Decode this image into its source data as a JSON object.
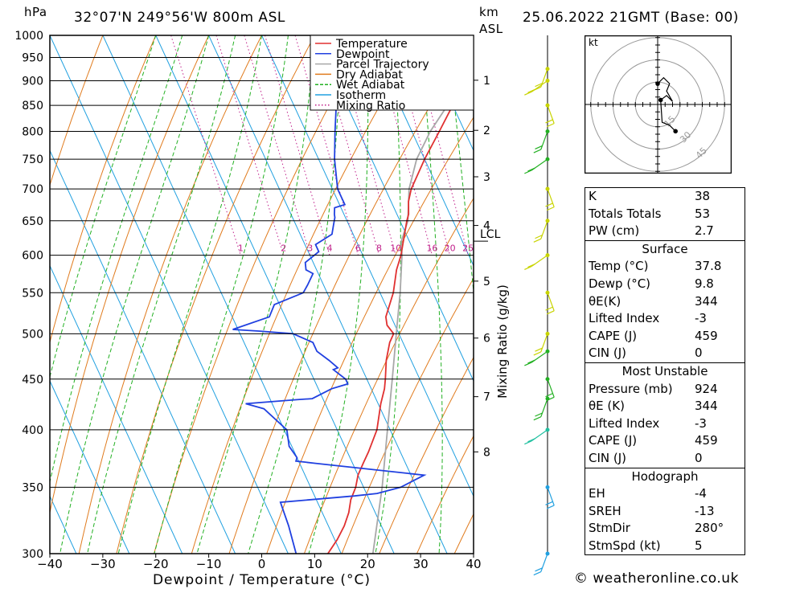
{
  "header": {
    "hpa_label": "hPa",
    "location": "32°07'N  249°56'W  800m  ASL",
    "km_label": "km",
    "asl_label": "ASL",
    "datetime": "25.06.2022  21GMT  (Base: 00)"
  },
  "footer": {
    "credit": "© weatheronline.co.uk"
  },
  "chart_data": {
    "type": "line",
    "xlabel": "Dewpoint / Temperature (°C)",
    "x_ticks": [
      -40,
      -30,
      -20,
      -10,
      0,
      10,
      20,
      30,
      40
    ],
    "xlim": [
      -40,
      40
    ],
    "y_axis": "pressure (hPa), log scale",
    "ylim": [
      1000,
      300
    ],
    "pressure_ticks": [
      300,
      350,
      400,
      450,
      500,
      550,
      600,
      650,
      700,
      750,
      800,
      850,
      900,
      950,
      1000
    ],
    "km_ticks": [
      {
        "label": "8",
        "p": 380
      },
      {
        "label": "7",
        "p": 432
      },
      {
        "label": "6",
        "p": 495
      },
      {
        "label": "5",
        "p": 565
      },
      {
        "label": "4",
        "p": 643
      },
      {
        "label": "3",
        "p": 720
      },
      {
        "label": "2",
        "p": 802
      },
      {
        "label": "1",
        "p": 901
      }
    ],
    "lcl": {
      "label": "LCL",
      "p": 620
    },
    "mixing_ratio_label": "Mixing Ratio (g/kg)",
    "mixing_ratio_values": [
      1,
      2,
      3,
      4,
      6,
      8,
      10,
      16,
      20,
      25
    ],
    "skew": 14.4,
    "legend": [
      "Temperature",
      "Dewpoint",
      "Parcel Trajectory",
      "Dry Adiabat",
      "Wet Adiabat",
      "Isotherm",
      "Mixing Ratio"
    ],
    "colors": {
      "temperature": "#e03030",
      "dewpoint": "#2040e0",
      "parcel": "#a8a8a8",
      "dry_adiabat": "#e07b1e",
      "wet_adiabat": "#22b022",
      "isotherm": "#20a0e0",
      "mixing_ratio": "#c0208a"
    },
    "series": [
      {
        "name": "Temperature",
        "values": [
          [
            924,
            37.8
          ],
          [
            910,
            36.3
          ],
          [
            900,
            35.0
          ],
          [
            850,
            30.0
          ],
          [
            800,
            25.2
          ],
          [
            750,
            20.0
          ],
          [
            700,
            14.9
          ],
          [
            680,
            13.3
          ],
          [
            660,
            12.2
          ],
          [
            650,
            11.3
          ],
          [
            640,
            10.5
          ],
          [
            600,
            7.2
          ],
          [
            580,
            5.1
          ],
          [
            550,
            2.5
          ],
          [
            520,
            -1.0
          ],
          [
            510,
            -1.5
          ],
          [
            500,
            -1.0
          ],
          [
            490,
            -2.5
          ],
          [
            470,
            -4.7
          ],
          [
            450,
            -6.5
          ],
          [
            440,
            -7.5
          ],
          [
            425,
            -9.5
          ],
          [
            400,
            -12.5
          ],
          [
            380,
            -16.0
          ],
          [
            370,
            -18.0
          ],
          [
            360,
            -20.0
          ],
          [
            350,
            -21.5
          ],
          [
            340,
            -23.5
          ],
          [
            330,
            -25.0
          ],
          [
            320,
            -27.0
          ],
          [
            310,
            -29.5
          ],
          [
            300,
            -32.5
          ]
        ]
      },
      {
        "name": "Dewpoint",
        "values": [
          [
            924,
            9.8
          ],
          [
            900,
            9.5
          ],
          [
            850,
            8.0
          ],
          [
            800,
            5.5
          ],
          [
            750,
            3.0
          ],
          [
            700,
            1.0
          ],
          [
            675,
            1.0
          ],
          [
            670,
            -1.2
          ],
          [
            660,
            -1.8
          ],
          [
            655,
            -2.0
          ],
          [
            645,
            -2.8
          ],
          [
            630,
            -4.0
          ],
          [
            615,
            -8.0
          ],
          [
            605,
            -8.0
          ],
          [
            590,
            -11.5
          ],
          [
            580,
            -12.0
          ],
          [
            575,
            -11.0
          ],
          [
            560,
            -13.0
          ],
          [
            550,
            -14.5
          ],
          [
            535,
            -21.0
          ],
          [
            520,
            -23.0
          ],
          [
            505,
            -31.0
          ],
          [
            503,
            -26.0
          ],
          [
            500,
            -20.0
          ],
          [
            490,
            -17.0
          ],
          [
            480,
            -17.0
          ],
          [
            470,
            -15.5
          ],
          [
            462,
            -14.5
          ],
          [
            460,
            -15.5
          ],
          [
            450,
            -14.0
          ],
          [
            445,
            -14.0
          ],
          [
            440,
            -17.5
          ],
          [
            430,
            -22.0
          ],
          [
            429,
            -25.0
          ],
          [
            425,
            -35.0
          ],
          [
            420,
            -32.0
          ],
          [
            400,
            -29.5
          ],
          [
            385,
            -30.5
          ],
          [
            375,
            -30.0
          ],
          [
            372,
            -30.5
          ],
          [
            370,
            -27.0
          ],
          [
            360,
            -7.5
          ],
          [
            350,
            -13.0
          ],
          [
            345,
            -18.0
          ],
          [
            343,
            -22.5
          ],
          [
            338,
            -37.0
          ],
          [
            320,
            -37.5
          ],
          [
            300,
            -38.5
          ]
        ]
      },
      {
        "name": "Parcel Trajectory",
        "values": [
          [
            924,
            37.8
          ],
          [
            900,
            34.6
          ],
          [
            850,
            29.0
          ],
          [
            800,
            23.5
          ],
          [
            750,
            18.5
          ],
          [
            700,
            14.5
          ],
          [
            650,
            11.5
          ],
          [
            620,
            8.5
          ],
          [
            600,
            7.4
          ],
          [
            550,
            3.8
          ],
          [
            500,
            -0.5
          ],
          [
            450,
            -5.2
          ],
          [
            400,
            -10.5
          ],
          [
            350,
            -16.5
          ],
          [
            300,
            -24.0
          ]
        ]
      }
    ],
    "wind_barbs": [
      {
        "p": 300,
        "color": "#20a0e0"
      },
      {
        "p": 350,
        "color": "#20a0e0"
      },
      {
        "p": 400,
        "color": "#20c0a0"
      },
      {
        "p": 430,
        "color": "#22b022"
      },
      {
        "p": 450,
        "color": "#22b022"
      },
      {
        "p": 480,
        "color": "#22b022"
      },
      {
        "p": 500,
        "color": "#c8d400"
      },
      {
        "p": 550,
        "color": "#c8d400"
      },
      {
        "p": 600,
        "color": "#c8d400"
      },
      {
        "p": 650,
        "color": "#c8d400"
      },
      {
        "p": 700,
        "color": "#c8d400"
      },
      {
        "p": 750,
        "color": "#22b022"
      },
      {
        "p": 800,
        "color": "#22b022"
      },
      {
        "p": 850,
        "color": "#c8d400"
      },
      {
        "p": 900,
        "color": "#c8d400"
      },
      {
        "p": 925,
        "color": "#c8d400"
      }
    ],
    "hodograph": {
      "unit": "kt",
      "ring_labels": [
        "15",
        "30",
        "45"
      ],
      "points": [
        [
          0,
          -14
        ],
        [
          4,
          -18
        ],
        [
          8,
          -14
        ],
        [
          6,
          -9
        ],
        [
          10,
          -2
        ],
        [
          6,
          -6
        ],
        [
          2,
          -3
        ],
        [
          3,
          12
        ],
        [
          8,
          14
        ],
        [
          12,
          18
        ]
      ]
    }
  },
  "indices": [
    {
      "label": "K",
      "value": "38"
    },
    {
      "label": "Totals Totals",
      "value": "53"
    },
    {
      "label": "PW (cm)",
      "value": "2.7"
    }
  ],
  "surface": {
    "title": "Surface",
    "rows": [
      {
        "label": "Temp (°C)",
        "value": "37.8"
      },
      {
        "label": "Dewp (°C)",
        "value": "9.8"
      },
      {
        "label": "θE(K)",
        "value": "344"
      },
      {
        "label": "Lifted Index",
        "value": "-3"
      },
      {
        "label": "CAPE (J)",
        "value": "459"
      },
      {
        "label": "CIN (J)",
        "value": "0"
      }
    ]
  },
  "most_unstable": {
    "title": "Most Unstable",
    "rows": [
      {
        "label": "Pressure (mb)",
        "value": "924"
      },
      {
        "label": "θE (K)",
        "value": "344"
      },
      {
        "label": "Lifted Index",
        "value": "-3"
      },
      {
        "label": "CAPE (J)",
        "value": "459"
      },
      {
        "label": "CIN (J)",
        "value": "0"
      }
    ]
  },
  "hodograph_table": {
    "title": "Hodograph",
    "rows": [
      {
        "label": "EH",
        "value": "-4"
      },
      {
        "label": "SREH",
        "value": "-13"
      },
      {
        "label": "StmDir",
        "value": "280°"
      },
      {
        "label": "StmSpd (kt)",
        "value": "5"
      }
    ]
  }
}
